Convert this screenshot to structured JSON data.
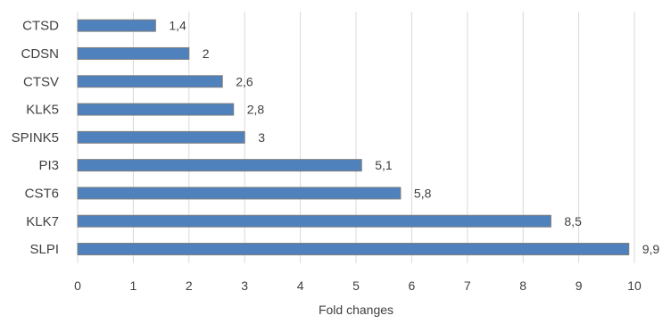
{
  "chart_data": {
    "type": "bar",
    "orientation": "horizontal",
    "categories": [
      "CTSD",
      "CDSN",
      "CTSV",
      "KLK5",
      "SPINK5",
      "PI3",
      "CST6",
      "KLK7",
      "SLPI"
    ],
    "values": [
      1.4,
      2,
      2.6,
      2.8,
      3,
      5.1,
      5.8,
      8.5,
      9.9
    ],
    "value_labels": [
      "1,4",
      "2",
      "2,6",
      "2,8",
      "3",
      "5,1",
      "5,8",
      "8,5",
      "9,9"
    ],
    "xlabel": "Fold changes",
    "xlim": [
      0,
      10
    ],
    "xticks": [
      0,
      1,
      2,
      3,
      4,
      5,
      6,
      7,
      8,
      9,
      10
    ],
    "grid": "vertical",
    "legend": "none",
    "colors": {
      "bar": "#4F81BD",
      "bar_edge": "#7F7F7F",
      "grid": "#D9D9D9",
      "text": "#404040"
    }
  }
}
